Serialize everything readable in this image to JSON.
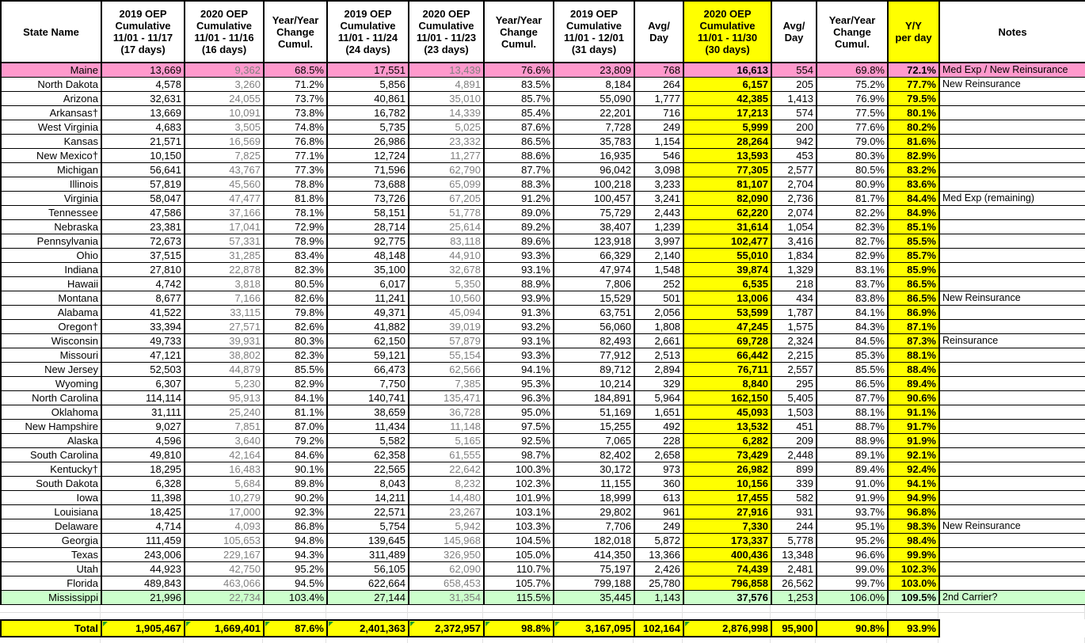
{
  "colors": {
    "row_highlight_pink": "#FF99CC",
    "row_highlight_green": "#CCFFCC",
    "column_highlight_yellow": "#FFFF00",
    "secondary_text_gray": "#808080",
    "error_flag_green": "#1fa32b"
  },
  "table": {
    "columns": [
      {
        "label": "State Name"
      },
      {
        "label": "2019 OEP\nCumulative\n11/01 - 11/17\n(17 days)"
      },
      {
        "label": "2020 OEP\nCumulative\n11/01 - 11/16\n(16 days)"
      },
      {
        "label": "Year/Year\nChange\nCumul."
      },
      {
        "label": "2019 OEP\nCumulative\n11/01 - 11/24\n(24 days)"
      },
      {
        "label": "2020 OEP\nCumulative\n11/01 - 11/23\n(23 days)"
      },
      {
        "label": "Year/Year\nChange\nCumul."
      },
      {
        "label": "2019 OEP\nCumulative\n11/01 - 12/01\n(31 days)"
      },
      {
        "label": "Avg/\nDay"
      },
      {
        "label": "2020 OEP\nCumulative\n11/01 - 11/30\n(30 days)",
        "highlight": true
      },
      {
        "label": "Avg/\nDay"
      },
      {
        "label": "Year/Year\nChange\nCumul."
      },
      {
        "label": "Y/Y\nper day",
        "highlight": true
      },
      {
        "label": "Notes"
      }
    ],
    "rows": [
      {
        "state": "Maine",
        "values": [
          "13,669",
          "9,362",
          "68.5%",
          "17,551",
          "13,439",
          "76.6%",
          "23,809",
          "768",
          "16,613",
          "554",
          "69.8%",
          "72.1%"
        ],
        "note": "Med Exp / New Reinsurance",
        "bg": "pink"
      },
      {
        "state": "North Dakota",
        "values": [
          "4,578",
          "3,260",
          "71.2%",
          "5,856",
          "4,891",
          "83.5%",
          "8,184",
          "264",
          "6,157",
          "205",
          "75.2%",
          "77.7%"
        ],
        "note": "New Reinsurance",
        "bg": ""
      },
      {
        "state": "Arizona",
        "values": [
          "32,631",
          "24,055",
          "73.7%",
          "40,861",
          "35,010",
          "85.7%",
          "55,090",
          "1,777",
          "42,385",
          "1,413",
          "76.9%",
          "79.5%"
        ],
        "note": "",
        "bg": ""
      },
      {
        "state": "Arkansas†",
        "values": [
          "13,669",
          "10,091",
          "73.8%",
          "16,782",
          "14,339",
          "85.4%",
          "22,201",
          "716",
          "17,213",
          "574",
          "77.5%",
          "80.1%"
        ],
        "note": "",
        "bg": ""
      },
      {
        "state": "West Virginia",
        "values": [
          "4,683",
          "3,505",
          "74.8%",
          "5,735",
          "5,025",
          "87.6%",
          "7,728",
          "249",
          "5,999",
          "200",
          "77.6%",
          "80.2%"
        ],
        "note": "",
        "bg": ""
      },
      {
        "state": "Kansas",
        "values": [
          "21,571",
          "16,569",
          "76.8%",
          "26,986",
          "23,332",
          "86.5%",
          "35,783",
          "1,154",
          "28,264",
          "942",
          "79.0%",
          "81.6%"
        ],
        "note": "",
        "bg": ""
      },
      {
        "state": "New Mexico†",
        "values": [
          "10,150",
          "7,825",
          "77.1%",
          "12,724",
          "11,277",
          "88.6%",
          "16,935",
          "546",
          "13,593",
          "453",
          "80.3%",
          "82.9%"
        ],
        "note": "",
        "bg": ""
      },
      {
        "state": "Michigan",
        "values": [
          "56,641",
          "43,767",
          "77.3%",
          "71,596",
          "62,790",
          "87.7%",
          "96,042",
          "3,098",
          "77,305",
          "2,577",
          "80.5%",
          "83.2%"
        ],
        "note": "",
        "bg": ""
      },
      {
        "state": "Illinois",
        "values": [
          "57,819",
          "45,560",
          "78.8%",
          "73,688",
          "65,099",
          "88.3%",
          "100,218",
          "3,233",
          "81,107",
          "2,704",
          "80.9%",
          "83.6%"
        ],
        "note": "",
        "bg": ""
      },
      {
        "state": "Virginia",
        "values": [
          "58,047",
          "47,477",
          "81.8%",
          "73,726",
          "67,205",
          "91.2%",
          "100,457",
          "3,241",
          "82,090",
          "2,736",
          "81.7%",
          "84.4%"
        ],
        "note": "Med Exp (remaining)",
        "bg": ""
      },
      {
        "state": "Tennessee",
        "values": [
          "47,586",
          "37,166",
          "78.1%",
          "58,151",
          "51,778",
          "89.0%",
          "75,729",
          "2,443",
          "62,220",
          "2,074",
          "82.2%",
          "84.9%"
        ],
        "note": "",
        "bg": ""
      },
      {
        "state": "Nebraska",
        "values": [
          "23,381",
          "17,041",
          "72.9%",
          "28,714",
          "25,614",
          "89.2%",
          "38,407",
          "1,239",
          "31,614",
          "1,054",
          "82.3%",
          "85.1%"
        ],
        "note": "",
        "bg": ""
      },
      {
        "state": "Pennsylvania",
        "values": [
          "72,673",
          "57,331",
          "78.9%",
          "92,775",
          "83,118",
          "89.6%",
          "123,918",
          "3,997",
          "102,477",
          "3,416",
          "82.7%",
          "85.5%"
        ],
        "note": "",
        "bg": ""
      },
      {
        "state": "Ohio",
        "values": [
          "37,515",
          "31,285",
          "83.4%",
          "48,148",
          "44,910",
          "93.3%",
          "66,329",
          "2,140",
          "55,010",
          "1,834",
          "82.9%",
          "85.7%"
        ],
        "note": "",
        "bg": ""
      },
      {
        "state": "Indiana",
        "values": [
          "27,810",
          "22,878",
          "82.3%",
          "35,100",
          "32,678",
          "93.1%",
          "47,974",
          "1,548",
          "39,874",
          "1,329",
          "83.1%",
          "85.9%"
        ],
        "note": "",
        "bg": ""
      },
      {
        "state": "Hawaii",
        "values": [
          "4,742",
          "3,818",
          "80.5%",
          "6,017",
          "5,350",
          "88.9%",
          "7,806",
          "252",
          "6,535",
          "218",
          "83.7%",
          "86.5%"
        ],
        "note": "",
        "bg": ""
      },
      {
        "state": "Montana",
        "values": [
          "8,677",
          "7,166",
          "82.6%",
          "11,241",
          "10,560",
          "93.9%",
          "15,529",
          "501",
          "13,006",
          "434",
          "83.8%",
          "86.5%"
        ],
        "note": "New Reinsurance",
        "bg": ""
      },
      {
        "state": "Alabama",
        "values": [
          "41,522",
          "33,115",
          "79.8%",
          "49,371",
          "45,094",
          "91.3%",
          "63,751",
          "2,056",
          "53,599",
          "1,787",
          "84.1%",
          "86.9%"
        ],
        "note": "",
        "bg": ""
      },
      {
        "state": "Oregon†",
        "values": [
          "33,394",
          "27,571",
          "82.6%",
          "41,882",
          "39,019",
          "93.2%",
          "56,060",
          "1,808",
          "47,245",
          "1,575",
          "84.3%",
          "87.1%"
        ],
        "note": "",
        "bg": ""
      },
      {
        "state": "Wisconsin",
        "values": [
          "49,733",
          "39,931",
          "80.3%",
          "62,150",
          "57,879",
          "93.1%",
          "82,493",
          "2,661",
          "69,728",
          "2,324",
          "84.5%",
          "87.3%"
        ],
        "note": "Reinsurance",
        "bg": ""
      },
      {
        "state": "Missouri",
        "values": [
          "47,121",
          "38,802",
          "82.3%",
          "59,121",
          "55,154",
          "93.3%",
          "77,912",
          "2,513",
          "66,442",
          "2,215",
          "85.3%",
          "88.1%"
        ],
        "note": "",
        "bg": ""
      },
      {
        "state": "New Jersey",
        "values": [
          "52,503",
          "44,879",
          "85.5%",
          "66,473",
          "62,566",
          "94.1%",
          "89,712",
          "2,894",
          "76,711",
          "2,557",
          "85.5%",
          "88.4%"
        ],
        "note": "",
        "bg": ""
      },
      {
        "state": "Wyoming",
        "values": [
          "6,307",
          "5,230",
          "82.9%",
          "7,750",
          "7,385",
          "95.3%",
          "10,214",
          "329",
          "8,840",
          "295",
          "86.5%",
          "89.4%"
        ],
        "note": "",
        "bg": ""
      },
      {
        "state": "North Carolina",
        "values": [
          "114,114",
          "95,913",
          "84.1%",
          "140,741",
          "135,471",
          "96.3%",
          "184,891",
          "5,964",
          "162,150",
          "5,405",
          "87.7%",
          "90.6%"
        ],
        "note": "",
        "bg": ""
      },
      {
        "state": "Oklahoma",
        "values": [
          "31,111",
          "25,240",
          "81.1%",
          "38,659",
          "36,728",
          "95.0%",
          "51,169",
          "1,651",
          "45,093",
          "1,503",
          "88.1%",
          "91.1%"
        ],
        "note": "",
        "bg": ""
      },
      {
        "state": "New Hampshire",
        "values": [
          "9,027",
          "7,851",
          "87.0%",
          "11,434",
          "11,148",
          "97.5%",
          "15,255",
          "492",
          "13,532",
          "451",
          "88.7%",
          "91.7%"
        ],
        "note": "",
        "bg": ""
      },
      {
        "state": "Alaska",
        "values": [
          "4,596",
          "3,640",
          "79.2%",
          "5,582",
          "5,165",
          "92.5%",
          "7,065",
          "228",
          "6,282",
          "209",
          "88.9%",
          "91.9%"
        ],
        "note": "",
        "bg": ""
      },
      {
        "state": "South Carolina",
        "values": [
          "49,810",
          "42,164",
          "84.6%",
          "62,358",
          "61,555",
          "98.7%",
          "82,402",
          "2,658",
          "73,429",
          "2,448",
          "89.1%",
          "92.1%"
        ],
        "note": "",
        "bg": ""
      },
      {
        "state": "Kentucky†",
        "values": [
          "18,295",
          "16,483",
          "90.1%",
          "22,565",
          "22,642",
          "100.3%",
          "30,172",
          "973",
          "26,982",
          "899",
          "89.4%",
          "92.4%"
        ],
        "note": "",
        "bg": ""
      },
      {
        "state": "South Dakota",
        "values": [
          "6,328",
          "5,684",
          "89.8%",
          "8,043",
          "8,232",
          "102.3%",
          "11,155",
          "360",
          "10,156",
          "339",
          "91.0%",
          "94.1%"
        ],
        "note": "",
        "bg": ""
      },
      {
        "state": "Iowa",
        "values": [
          "11,398",
          "10,279",
          "90.2%",
          "14,211",
          "14,480",
          "101.9%",
          "18,999",
          "613",
          "17,455",
          "582",
          "91.9%",
          "94.9%"
        ],
        "note": "",
        "bg": ""
      },
      {
        "state": "Louisiana",
        "values": [
          "18,425",
          "17,000",
          "92.3%",
          "22,571",
          "23,267",
          "103.1%",
          "29,802",
          "961",
          "27,916",
          "931",
          "93.7%",
          "96.8%"
        ],
        "note": "",
        "bg": ""
      },
      {
        "state": "Delaware",
        "values": [
          "4,714",
          "4,093",
          "86.8%",
          "5,754",
          "5,942",
          "103.3%",
          "7,706",
          "249",
          "7,330",
          "244",
          "95.1%",
          "98.3%"
        ],
        "note": "New Reinsurance",
        "bg": ""
      },
      {
        "state": "Georgia",
        "values": [
          "111,459",
          "105,653",
          "94.8%",
          "139,645",
          "145,968",
          "104.5%",
          "182,018",
          "5,872",
          "173,337",
          "5,778",
          "95.2%",
          "98.4%"
        ],
        "note": "",
        "bg": ""
      },
      {
        "state": "Texas",
        "values": [
          "243,006",
          "229,167",
          "94.3%",
          "311,489",
          "326,950",
          "105.0%",
          "414,350",
          "13,366",
          "400,436",
          "13,348",
          "96.6%",
          "99.9%"
        ],
        "note": "",
        "bg": ""
      },
      {
        "state": "Utah",
        "values": [
          "44,923",
          "42,750",
          "95.2%",
          "56,105",
          "62,090",
          "110.7%",
          "75,197",
          "2,426",
          "74,439",
          "2,481",
          "99.0%",
          "102.3%"
        ],
        "note": "",
        "bg": ""
      },
      {
        "state": "Florida",
        "values": [
          "489,843",
          "463,066",
          "94.5%",
          "622,664",
          "658,453",
          "105.7%",
          "799,188",
          "25,780",
          "796,858",
          "26,562",
          "99.7%",
          "103.0%"
        ],
        "note": "",
        "bg": ""
      },
      {
        "state": "Mississippi",
        "values": [
          "21,996",
          "22,734",
          "103.4%",
          "27,144",
          "31,354",
          "115.5%",
          "35,445",
          "1,143",
          "37,576",
          "1,253",
          "106.0%",
          "109.5%"
        ],
        "note": "2nd Carrier?",
        "bg": "green"
      }
    ],
    "total": {
      "label": "Total",
      "values": [
        "1,905,467",
        "1,669,401",
        "87.6%",
        "2,401,363",
        "2,372,957",
        "98.8%",
        "3,167,095",
        "102,164",
        "2,876,998",
        "95,900",
        "90.8%",
        "93.9%"
      ]
    }
  }
}
